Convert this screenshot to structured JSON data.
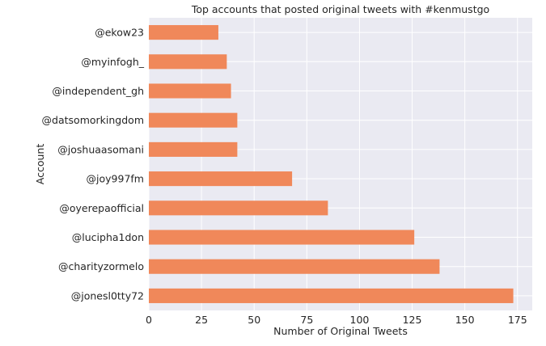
{
  "chart_data": {
    "type": "bar",
    "orientation": "horizontal",
    "title": "Top accounts that posted original tweets with #kenmustgo",
    "xlabel": "Number of Original Tweets",
    "ylabel": "Account",
    "categories": [
      "@jonesl0tty72",
      "@charityzormelo",
      "@lucipha1don",
      "@oyerepaofficial",
      "@joy997fm",
      "@joshuaasomani",
      "@datsomorkingdom",
      "@independent_gh",
      "@myinfogh_",
      "@ekow23"
    ],
    "values": [
      173,
      138,
      126,
      85,
      68,
      42,
      42,
      39,
      37,
      33
    ],
    "xlim": [
      0,
      182
    ],
    "xticks": [
      0,
      25,
      50,
      75,
      100,
      125,
      150,
      175
    ],
    "grid": true,
    "bar_color": "#f0885a",
    "plot_bg": "#eaeaf2",
    "grid_color": "#ffffff"
  }
}
